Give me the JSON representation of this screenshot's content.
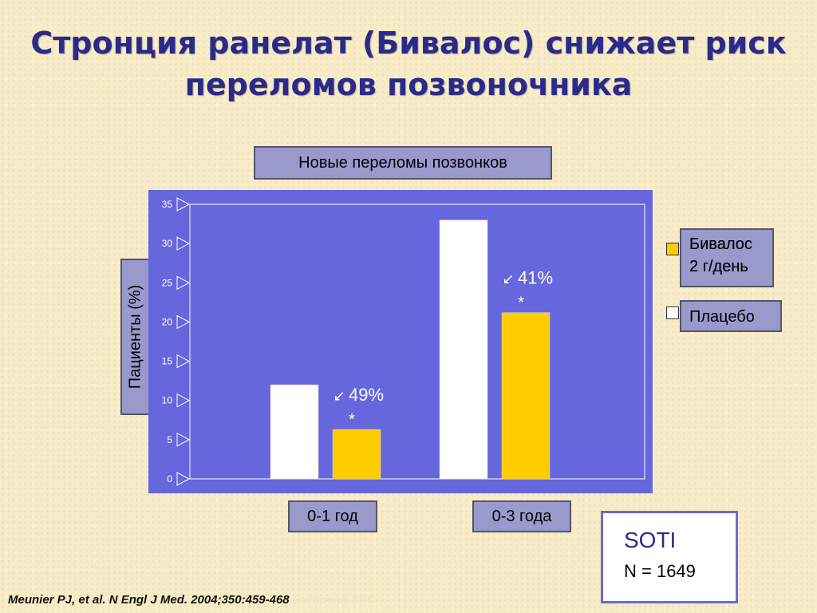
{
  "slide": {
    "title_line1": "Стронция ранелат (Бивалос) снижает риск",
    "title_line2": "переломов позвоночника"
  },
  "chart_data": {
    "type": "bar",
    "title": "Новые переломы позвонков",
    "ylabel": "Пациенты (%)",
    "ylim": [
      0,
      35
    ],
    "yticks": [
      0,
      5,
      10,
      15,
      20,
      25,
      30,
      35
    ],
    "categories": [
      "0-1 год",
      "0-3 года"
    ],
    "series": [
      {
        "name": "Плацебо",
        "values": [
          12,
          33
        ],
        "color": "#ffffff"
      },
      {
        "name": "Бивалос 2 г/день",
        "values": [
          6.3,
          21.2
        ],
        "color": "#ffcc00"
      }
    ],
    "annotations": [
      {
        "category": "0-1 год",
        "text": "49%",
        "significance": "*"
      },
      {
        "category": "0-3 года",
        "text": "41%",
        "significance": "*"
      }
    ],
    "plot_background": "#6666dd",
    "grid": false,
    "legend_position": "right"
  },
  "legend": {
    "bivalos_line1": "Бивалос",
    "bivalos_line2": "2 г/день",
    "placebo": "Плацебо"
  },
  "study": {
    "name": "SOTI",
    "n": "N = 1649"
  },
  "citation": {
    "text": "Meunier PJ, et al. N Engl J Med. 2004;350:459-468",
    "faint": "European SPC."
  }
}
